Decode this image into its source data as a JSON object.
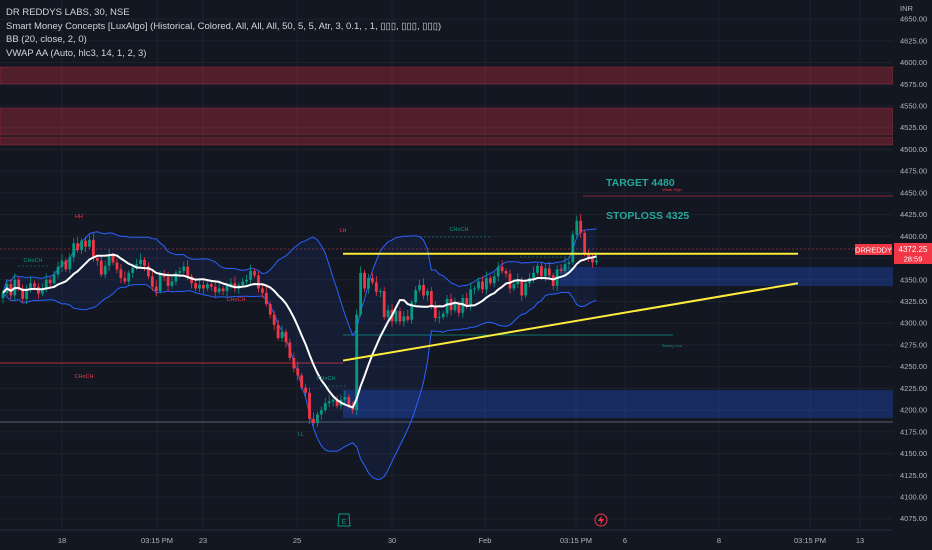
{
  "header": {
    "symbol_line": "DR REDDYS LABS, 30, NSE",
    "indicators": [
      "Smart Money Concepts [LuxAlgo] (Historical, Colored, All, All, All, 50, 5, 5, Atr, 3, 0.1, , 1, ▯▯▯, ▯▯▯, ▯▯▯)",
      "BB (20, close, 2, 0)",
      "VWAP AA (Auto, hlc3, 14, 1, 2, 3)"
    ]
  },
  "currency": "INR",
  "price_tag": {
    "symbol": "DRREDDY",
    "price": "4372.25",
    "countdown": "28:59"
  },
  "annotations": [
    {
      "text": "TARGET 4480",
      "color": "#26a69a"
    },
    {
      "text": "STOPLOSS 4325",
      "color": "#26a69a"
    }
  ],
  "smc_labels": [
    {
      "text": "HH",
      "color": "#f23645"
    },
    {
      "text": "CHoCH",
      "color": "#089981"
    },
    {
      "text": "CHoCH",
      "color": "#f23645"
    },
    {
      "text": "LH",
      "color": "#f23645"
    },
    {
      "text": "CHoCH",
      "color": "#089981"
    },
    {
      "text": "CHoCH",
      "color": "#f23645"
    },
    {
      "text": "CHoCH",
      "color": "#089981"
    },
    {
      "text": "LL",
      "color": "#089981"
    },
    {
      "text": "Weak High",
      "color": "#f23645"
    },
    {
      "text": "Strong Low",
      "color": "#089981"
    }
  ],
  "x_axis_labels": [
    "18",
    "03:15 PM",
    "23",
    "25",
    "30",
    "Feb",
    "03:15 PM",
    "6",
    "8",
    "03:15 PM",
    "13"
  ],
  "icons": [
    "earnings-icon",
    "lightning-icon"
  ],
  "colors": {
    "up": "#089981",
    "down": "#f23645",
    "bb": "#2962ff",
    "vwap": "#ffffff",
    "trendline": "#ffeb3b"
  },
  "chart_data": {
    "type": "candlestick",
    "ylim": [
      4062,
      4672
    ],
    "y_ticks": [
      4075,
      4100,
      4125,
      4150,
      4175,
      4200,
      4225,
      4250,
      4275,
      4300,
      4325,
      4350,
      4375,
      4400,
      4425,
      4450,
      4475,
      4500,
      4525,
      4550,
      4575,
      4600,
      4625,
      4650
    ],
    "close": [
      4335,
      4345,
      4332,
      4350,
      4340,
      4328,
      4338,
      4346,
      4342,
      4334,
      4340,
      4350,
      4346,
      4356,
      4365,
      4372,
      4362,
      4376,
      4392,
      4384,
      4395,
      4388,
      4396,
      4375,
      4372,
      4356,
      4366,
      4378,
      4370,
      4362,
      4352,
      4348,
      4358,
      4364,
      4368,
      4373,
      4366,
      4354,
      4342,
      4337,
      4357,
      4353,
      4343,
      4348,
      4358,
      4360,
      4365,
      4354,
      4346,
      4340,
      4344,
      4340,
      4345,
      4342,
      4336,
      4340,
      4337,
      4343,
      4346,
      4340,
      4344,
      4348,
      4350,
      4360,
      4355,
      4340,
      4335,
      4322,
      4310,
      4298,
      4283,
      4290,
      4278,
      4260,
      4248,
      4240,
      4226,
      4220,
      4190,
      4185,
      4195,
      4200,
      4208,
      4210,
      4212,
      4205,
      4212,
      4215,
      4205,
      4200,
      4310,
      4358,
      4340,
      4352,
      4347,
      4336,
      4337,
      4307,
      4315,
      4302,
      4314,
      4302,
      4308,
      4304,
      4324,
      4338,
      4344,
      4332,
      4337,
      4319,
      4306,
      4307,
      4311,
      4328,
      4315,
      4322,
      4312,
      4329,
      4319,
      4339,
      4340,
      4348,
      4339,
      4352,
      4346,
      4354,
      4365,
      4360,
      4357,
      4340,
      4345,
      4350,
      4332,
      4346,
      4352,
      4358,
      4366,
      4354,
      4363,
      4355,
      4343,
      4362,
      4360,
      4368,
      4370,
      4402,
      4418,
      4404,
      4380,
      4375,
      4370,
      4372
    ],
    "series": [
      {
        "name": "Resistance",
        "points": [
          [
            343,
            4380
          ],
          [
            798,
            4380
          ]
        ]
      },
      {
        "name": "Support",
        "points": [
          [
            343,
            4257
          ],
          [
            798,
            4346
          ]
        ]
      }
    ]
  }
}
